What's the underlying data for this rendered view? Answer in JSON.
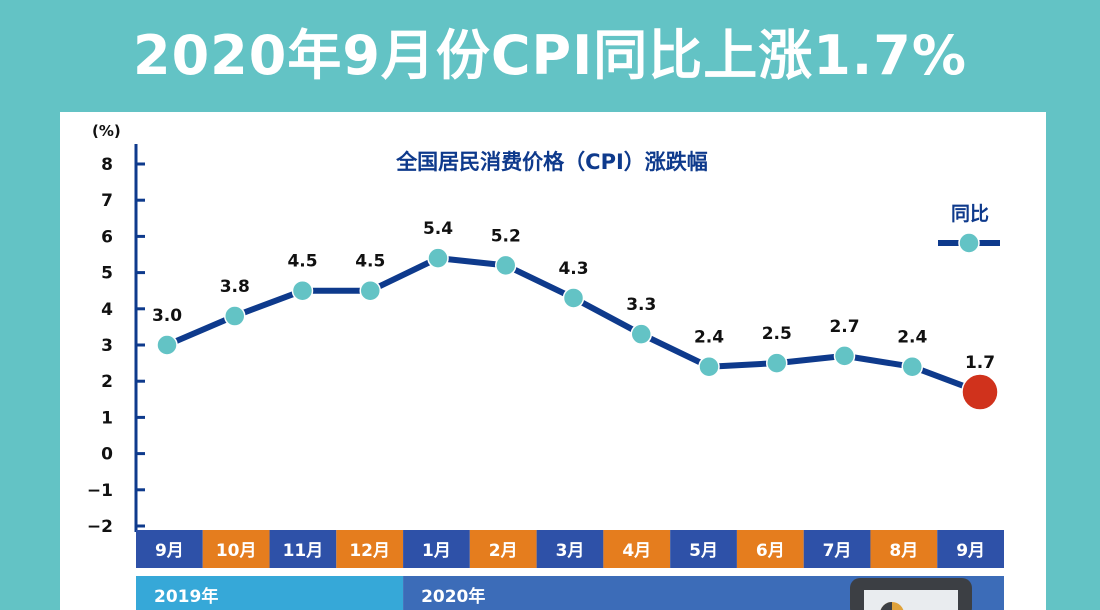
{
  "headline": "2020年9月份CPI同比上涨1.7%",
  "colors": {
    "background": "#63C3C5",
    "line": "#0E3A8C",
    "marker": "#63C3C5",
    "highlight_marker": "#D0321C",
    "month_blue": "#2E51A8",
    "month_orange": "#E57D1E",
    "year_2019": "#36A8D8",
    "year_2020": "#3C6CB8"
  },
  "chart_data": {
    "type": "line",
    "title": "全国居民消费价格（CPI）涨跌幅",
    "unit": "(%)",
    "ylim": [
      -2,
      8
    ],
    "yticks": [
      "8",
      "7",
      "6",
      "5",
      "4",
      "3",
      "2",
      "1",
      "0",
      "−1",
      "−2"
    ],
    "categories": [
      "9月",
      "10月",
      "11月",
      "12月",
      "1月",
      "2月",
      "3月",
      "4月",
      "5月",
      "6月",
      "7月",
      "8月",
      "9月"
    ],
    "series": [
      {
        "name": "同比",
        "values": [
          3.0,
          3.8,
          4.5,
          4.5,
          5.4,
          5.2,
          4.3,
          3.3,
          2.4,
          2.5,
          2.7,
          2.4,
          1.7
        ],
        "labels": [
          "3.0",
          "3.8",
          "4.5",
          "4.5",
          "5.4",
          "5.2",
          "4.3",
          "3.3",
          "2.4",
          "2.5",
          "2.7",
          "2.4",
          "1.7"
        ]
      }
    ],
    "years": [
      {
        "label": "2019年",
        "months": 4
      },
      {
        "label": "2020年",
        "months": 9
      }
    ],
    "legend_position": "top-right",
    "grid": false
  }
}
